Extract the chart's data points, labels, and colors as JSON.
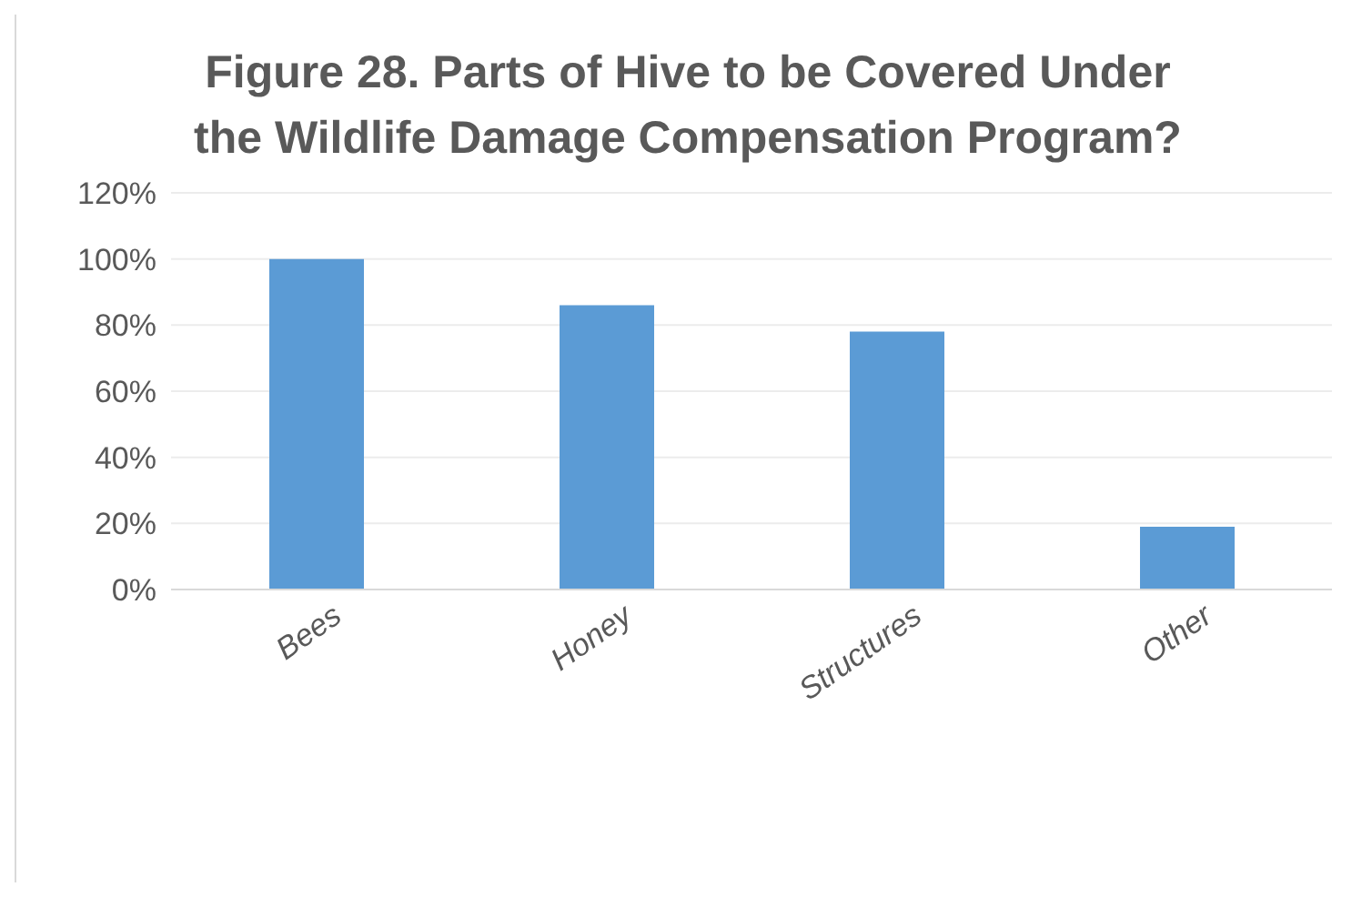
{
  "chart_data": {
    "type": "bar",
    "title": "Figure 28. Parts of Hive to be Covered Under the Wildlife Damage Compensation Program?",
    "categories": [
      "Bees",
      "Honey",
      "Structures",
      "Other"
    ],
    "values": [
      100,
      86,
      78,
      19
    ],
    "color": "#5b9bd5",
    "ylim": [
      0,
      120
    ],
    "yticks": [
      {
        "value": 0,
        "label": "0%"
      },
      {
        "value": 20,
        "label": "20%"
      },
      {
        "value": 40,
        "label": "40%"
      },
      {
        "value": 60,
        "label": "60%"
      },
      {
        "value": 80,
        "label": "80%"
      },
      {
        "value": 100,
        "label": "100%"
      },
      {
        "value": 120,
        "label": "120%"
      }
    ],
    "grid": "y",
    "legend": false
  }
}
